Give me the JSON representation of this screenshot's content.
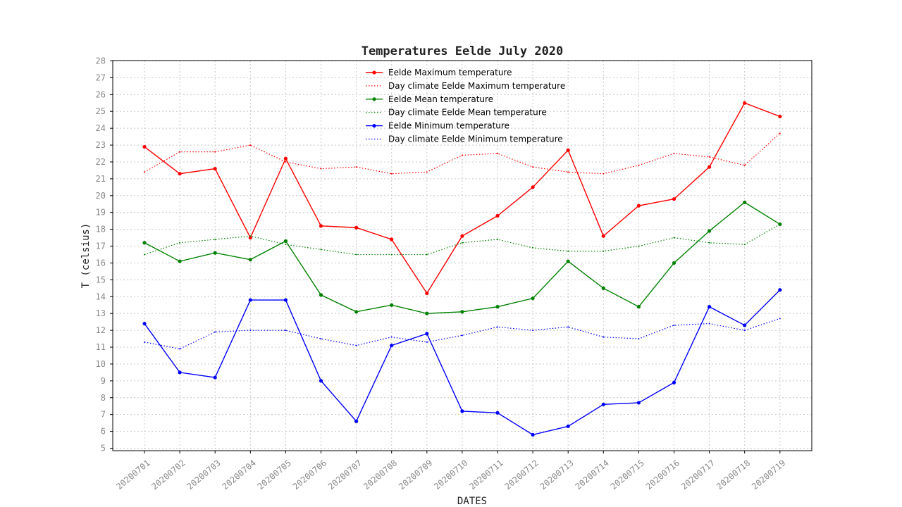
{
  "chart_data": {
    "type": "line",
    "title": "Temperatures Eelde July 2020",
    "xlabel": "DATES",
    "ylabel": "T (celsius)",
    "ylim": [
      5,
      28
    ],
    "grid": true,
    "legend_position": "top-center",
    "categories": [
      "20200701",
      "20200702",
      "20200703",
      "20200704",
      "20200705",
      "20200706",
      "20200707",
      "20200708",
      "20200709",
      "20200710",
      "20200711",
      "20200712",
      "20200713",
      "20200714",
      "20200715",
      "20200716",
      "20200717",
      "20200718",
      "20200719"
    ],
    "yticks": [
      5,
      6,
      7,
      8,
      9,
      10,
      11,
      12,
      13,
      14,
      15,
      16,
      17,
      18,
      19,
      20,
      21,
      22,
      23,
      24,
      25,
      26,
      27,
      28
    ],
    "series": [
      {
        "name": "Eelde Maximum temperature",
        "color": "#ff0000",
        "style": "solid",
        "marker": true,
        "values": [
          22.9,
          21.3,
          21.6,
          17.5,
          22.2,
          18.2,
          18.1,
          17.4,
          14.2,
          17.6,
          18.8,
          20.5,
          22.7,
          17.6,
          19.4,
          19.8,
          21.7,
          25.5,
          24.7
        ]
      },
      {
        "name": "Day climate Eelde Maximum temperature",
        "color": "#ff0000",
        "style": "dotted",
        "marker": false,
        "values": [
          21.4,
          22.6,
          22.6,
          23.0,
          22.0,
          21.6,
          21.7,
          21.3,
          21.4,
          22.4,
          22.5,
          21.7,
          21.4,
          21.3,
          21.8,
          22.5,
          22.3,
          21.8,
          23.7
        ]
      },
      {
        "name": "Eelde Mean temperature",
        "color": "#008000",
        "style": "solid",
        "marker": true,
        "values": [
          17.2,
          16.1,
          16.6,
          16.2,
          17.3,
          14.1,
          13.1,
          13.5,
          13.0,
          13.1,
          13.4,
          13.9,
          16.1,
          14.5,
          13.4,
          16.0,
          17.9,
          19.6,
          18.3
        ]
      },
      {
        "name": "Day climate Eelde Mean temperature",
        "color": "#008000",
        "style": "dotted",
        "marker": false,
        "values": [
          16.5,
          17.2,
          17.4,
          17.6,
          17.1,
          16.8,
          16.5,
          16.5,
          16.5,
          17.2,
          17.4,
          16.9,
          16.7,
          16.7,
          17.0,
          17.5,
          17.2,
          17.1,
          18.3
        ]
      },
      {
        "name": "Eelde Minimum temperature",
        "color": "#0000ff",
        "style": "solid",
        "marker": true,
        "values": [
          12.4,
          9.5,
          9.2,
          13.8,
          13.8,
          9.0,
          6.6,
          11.1,
          11.8,
          7.2,
          7.1,
          5.8,
          6.3,
          7.6,
          7.7,
          8.9,
          13.4,
          12.3,
          14.4
        ]
      },
      {
        "name": "Day climate Eelde Minimum temperature",
        "color": "#0000ff",
        "style": "dotted",
        "marker": false,
        "values": [
          11.3,
          10.9,
          11.9,
          12.0,
          12.0,
          11.5,
          11.1,
          11.6,
          11.3,
          11.7,
          12.2,
          12.0,
          12.2,
          11.6,
          11.5,
          12.3,
          12.4,
          12.0,
          12.7
        ]
      }
    ]
  }
}
